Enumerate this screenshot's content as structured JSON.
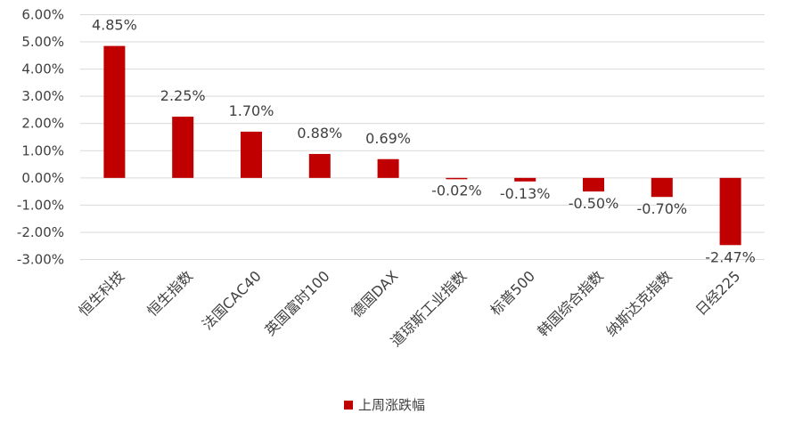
{
  "chart_data": {
    "type": "bar",
    "categories": [
      "恒生科技",
      "恒生指数",
      "法国CAC40",
      "英国富时100",
      "德国DAX",
      "道琼斯工业指数",
      "标普500",
      "韩国综合指数",
      "纳斯达克指数",
      "日经225"
    ],
    "series": [
      {
        "name": "上周涨跌幅",
        "values": [
          4.85,
          2.25,
          1.7,
          0.88,
          0.69,
          -0.02,
          -0.13,
          -0.5,
          -0.7,
          -2.47
        ]
      }
    ],
    "data_labels": [
      "4.85%",
      "2.25%",
      "1.70%",
      "0.88%",
      "0.69%",
      "-0.02%",
      "-0.13%",
      "-0.50%",
      "-0.70%",
      "-2.47%"
    ],
    "y_ticks": [
      6,
      5,
      4,
      3,
      2,
      1,
      0,
      -1,
      -2,
      -3
    ],
    "y_tick_labels": [
      "6.00%",
      "5.00%",
      "4.00%",
      "3.00%",
      "2.00%",
      "1.00%",
      "0.00%",
      "-1.00%",
      "-2.00%",
      "-3.00%"
    ],
    "ylim": [
      -3,
      6
    ],
    "grid": true,
    "legend_position": "bottom",
    "colors": {
      "bar": "#C00000",
      "grid": "#D9D9D9",
      "text": "#404040"
    }
  }
}
